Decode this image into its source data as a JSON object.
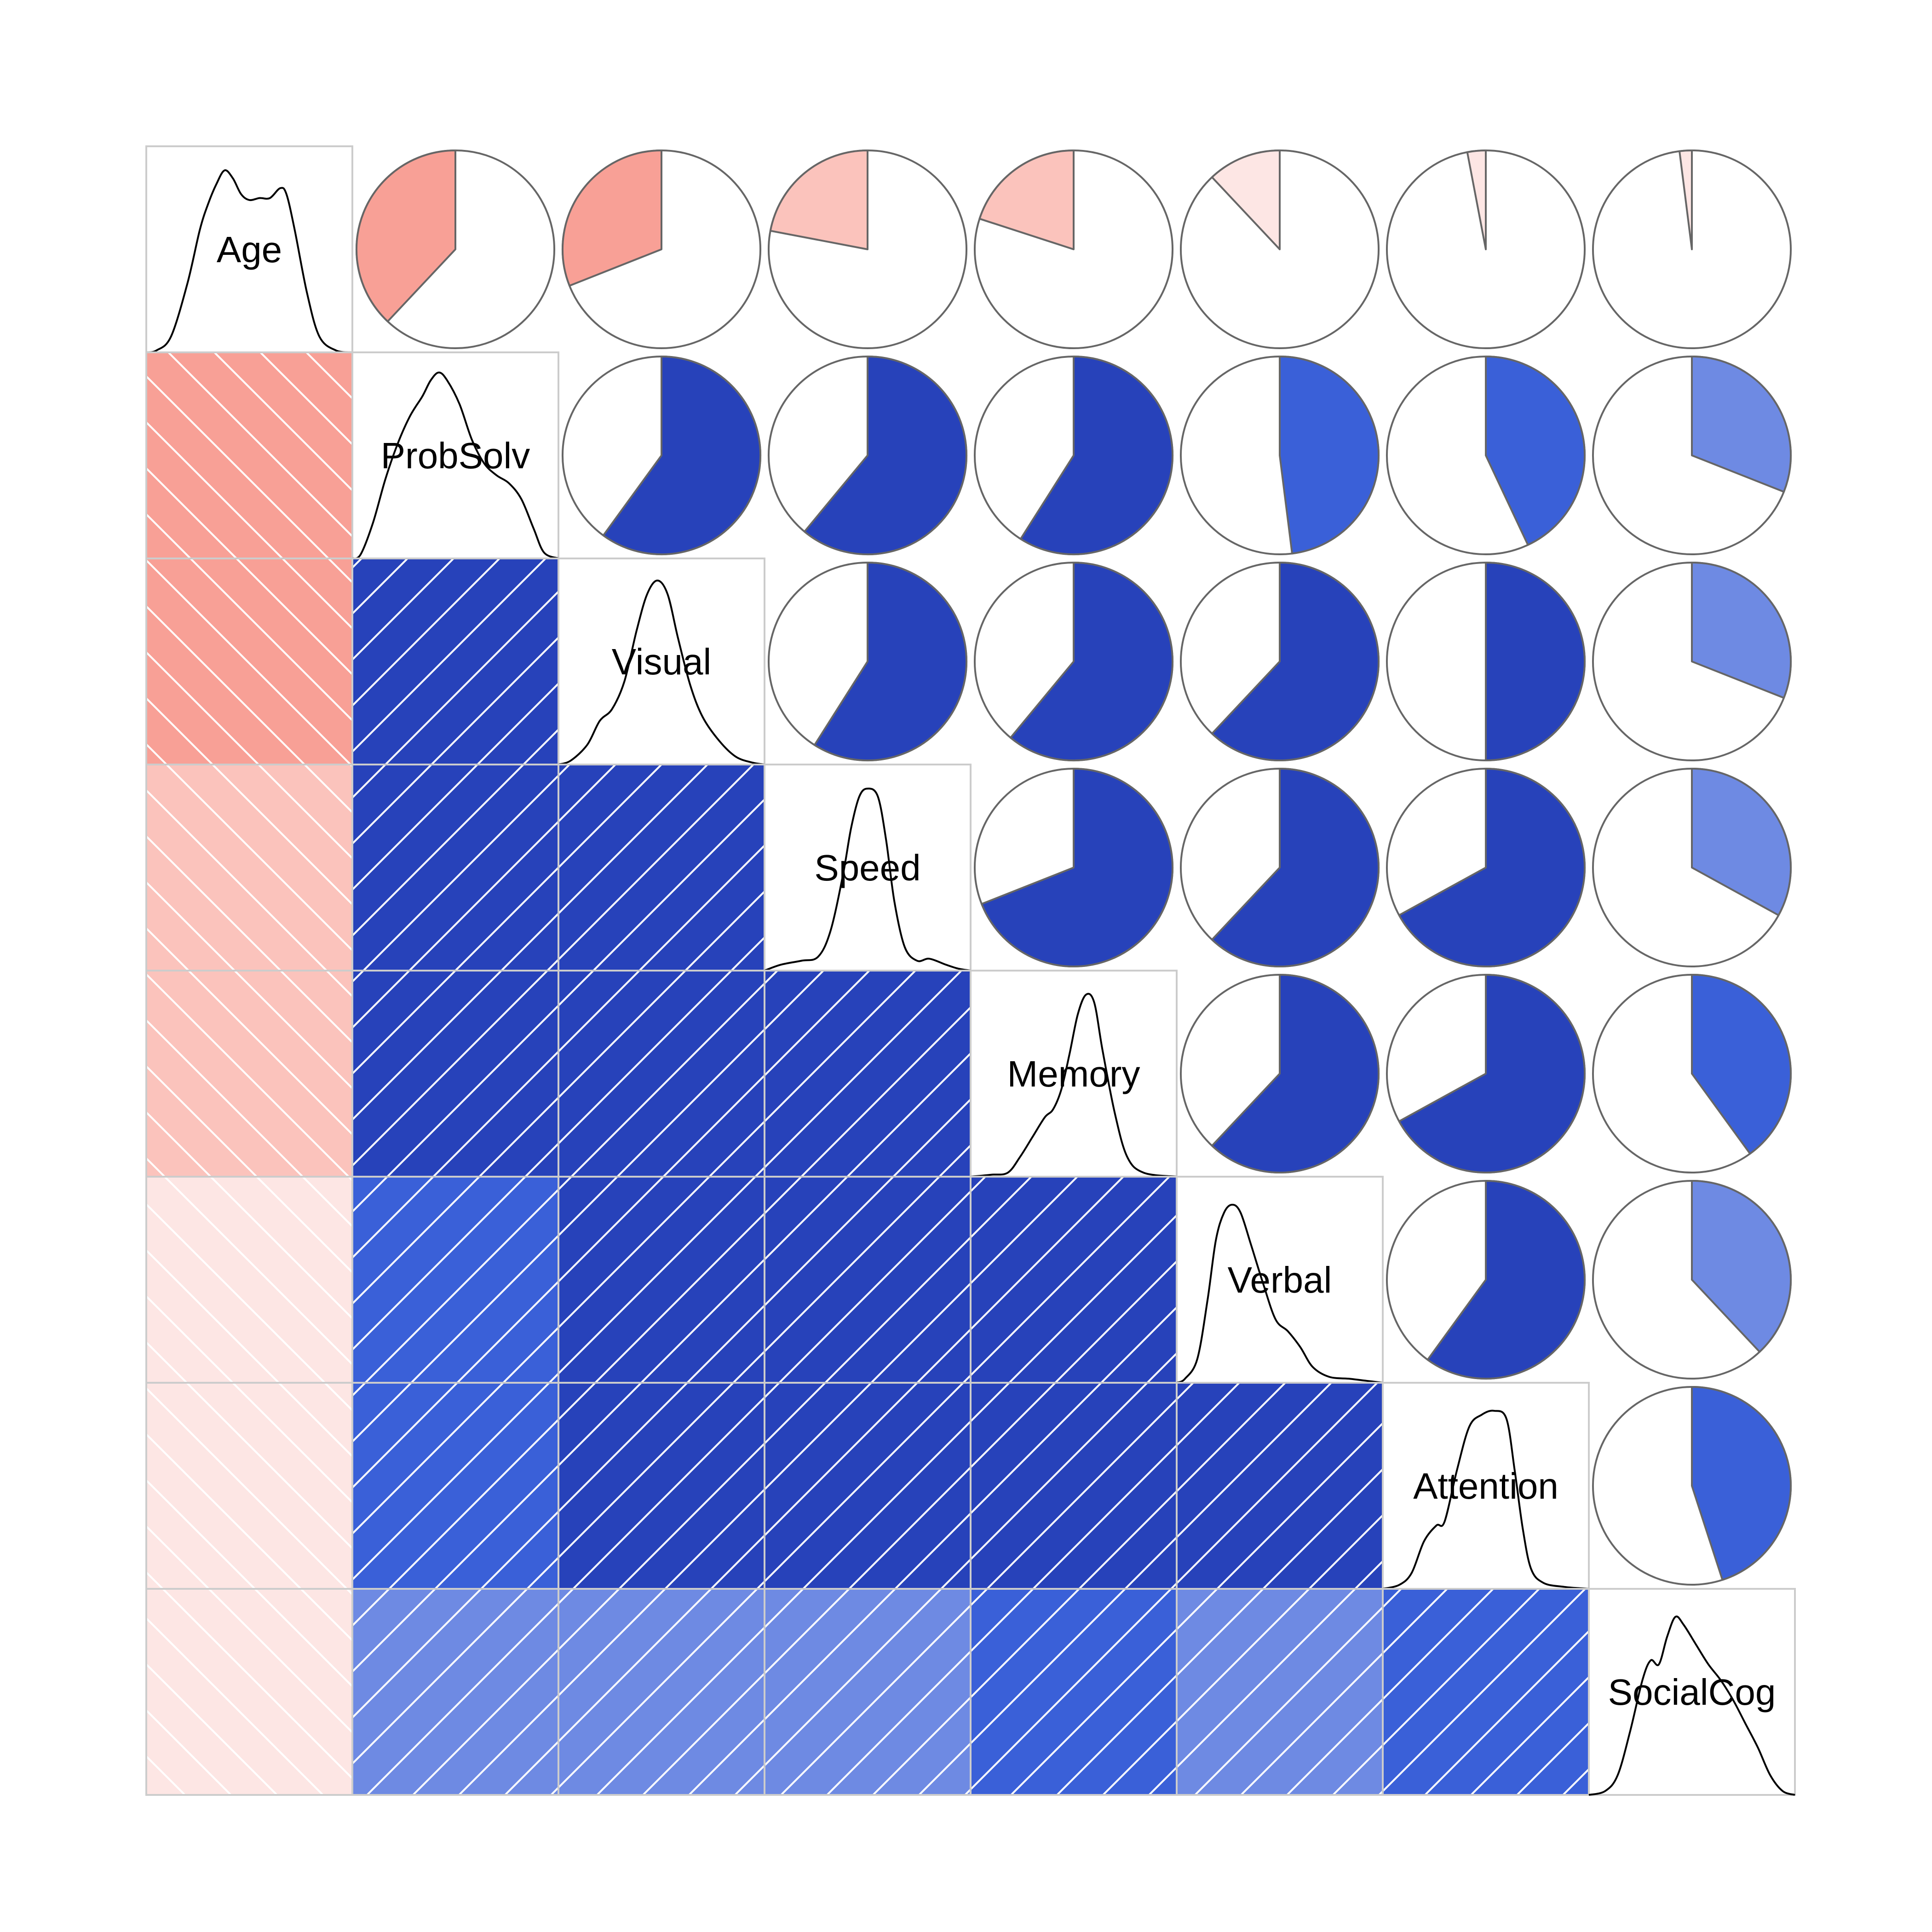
{
  "chart_data": {
    "type": "heatmap",
    "variables": [
      "Age",
      "ProbSolv",
      "Visual",
      "Speed",
      "Memory",
      "Verbal",
      "Attention",
      "SocialCog"
    ],
    "correlations": [
      [
        1.0,
        -0.38,
        -0.31,
        -0.22,
        -0.2,
        -0.12,
        -0.03,
        -0.02
      ],
      [
        -0.38,
        1.0,
        0.6,
        0.61,
        0.59,
        0.48,
        0.43,
        0.31
      ],
      [
        -0.31,
        0.6,
        1.0,
        0.59,
        0.61,
        0.62,
        0.5,
        0.31
      ],
      [
        -0.22,
        0.61,
        0.59,
        1.0,
        0.69,
        0.62,
        0.67,
        0.33
      ],
      [
        -0.2,
        0.59,
        0.61,
        0.69,
        1.0,
        0.62,
        0.67,
        0.4
      ],
      [
        -0.12,
        0.48,
        0.62,
        0.62,
        0.62,
        1.0,
        0.6,
        0.38
      ],
      [
        -0.03,
        0.43,
        0.5,
        0.67,
        0.67,
        0.6,
        1.0,
        0.45
      ],
      [
        -0.02,
        0.31,
        0.31,
        0.33,
        0.4,
        0.38,
        0.45,
        1.0
      ]
    ],
    "lower_panel": "shade",
    "upper_panel": "pie",
    "diagonal_panel": "density",
    "colors": {
      "positive_strong": "#2742BA",
      "positive_medium": "#3A60D8",
      "positive_weak": "#6E8AE3",
      "negative_strong": "#F8A096",
      "negative_medium": "#FBC3BC",
      "negative_weak": "#FDE6E4",
      "pie_border": "#666666",
      "panel_border": "#cccccc"
    }
  }
}
